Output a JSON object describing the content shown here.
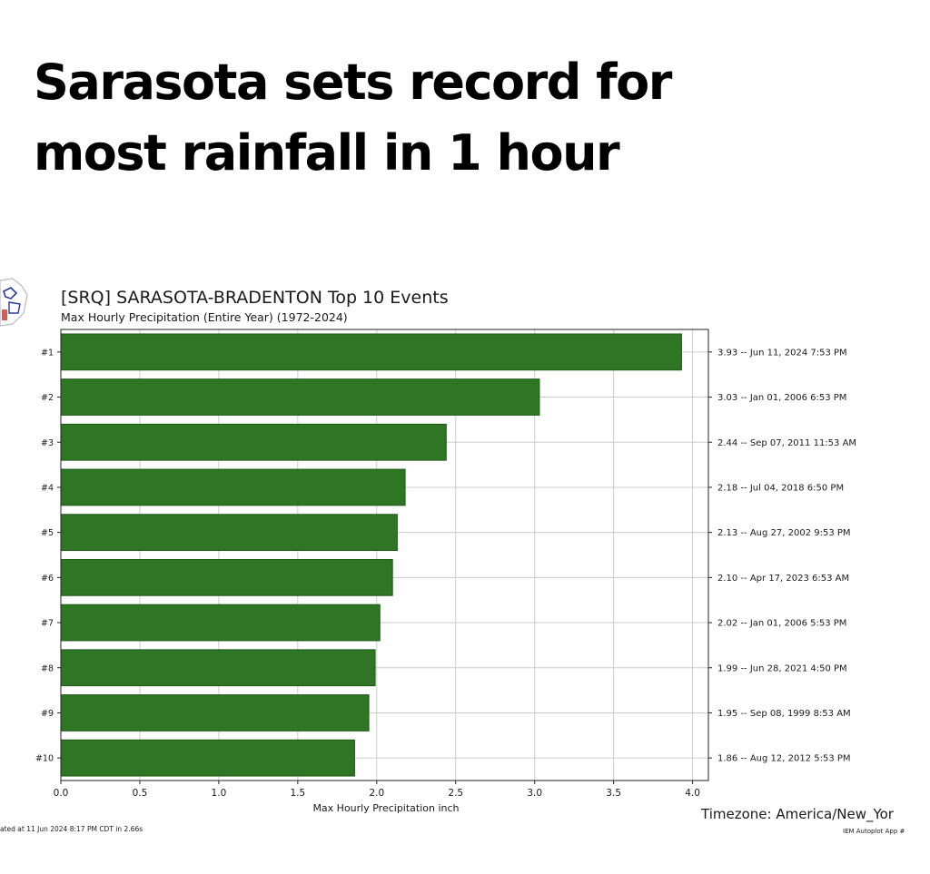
{
  "headline": {
    "line1": "Sarasota sets record for",
    "line2": "most rainfall in 1 hour"
  },
  "colors": {
    "bar": "#2e7524",
    "bar_edge": "#1f5a18",
    "grid": "#cccccc",
    "text": "#1a1a1a"
  },
  "chart_data": {
    "type": "bar",
    "orientation": "horizontal",
    "title": "[SRQ] SARASOTA-BRADENTON Top 10 Events",
    "subtitle": "Max Hourly Precipitation  (Entire Year) (1972-2024)",
    "xlabel": "Max Hourly Precipitation inch",
    "ylabel": "",
    "xlim": [
      0,
      4.1
    ],
    "xticks": [
      "0.0",
      "0.5",
      "1.0",
      "1.5",
      "2.0",
      "2.5",
      "3.0",
      "3.5",
      "4.0"
    ],
    "grid": true,
    "categories": [
      "#1",
      "#2",
      "#3",
      "#4",
      "#5",
      "#6",
      "#7",
      "#8",
      "#9",
      "#10"
    ],
    "values": [
      3.93,
      3.03,
      2.44,
      2.18,
      2.13,
      2.1,
      2.02,
      1.99,
      1.95,
      1.86
    ],
    "right_labels": [
      "3.93 -- Jun 11, 2024 7:53 PM",
      "3.03 -- Jan 01, 2006 6:53 PM",
      "2.44 -- Sep 07, 2011 11:53 AM",
      "2.18 -- Jul 04, 2018 6:50 PM",
      "2.13 -- Aug 27, 2002 9:53 PM",
      "2.10 -- Apr 17, 2023 6:53 AM",
      "2.02 -- Jan 01, 2006 5:53 PM",
      "1.99 -- Jun 28, 2021 4:50 PM",
      "1.95 -- Sep 08, 1999 8:53 AM",
      "1.86 -- Aug 12, 2012 5:53 PM"
    ],
    "timezone": "Timezone: America/New_Yor",
    "footer_left": "ated at 11 Jun 2024 8:17 PM CDT in 2.66s",
    "footer_right": "IEM Autoplot App #"
  }
}
